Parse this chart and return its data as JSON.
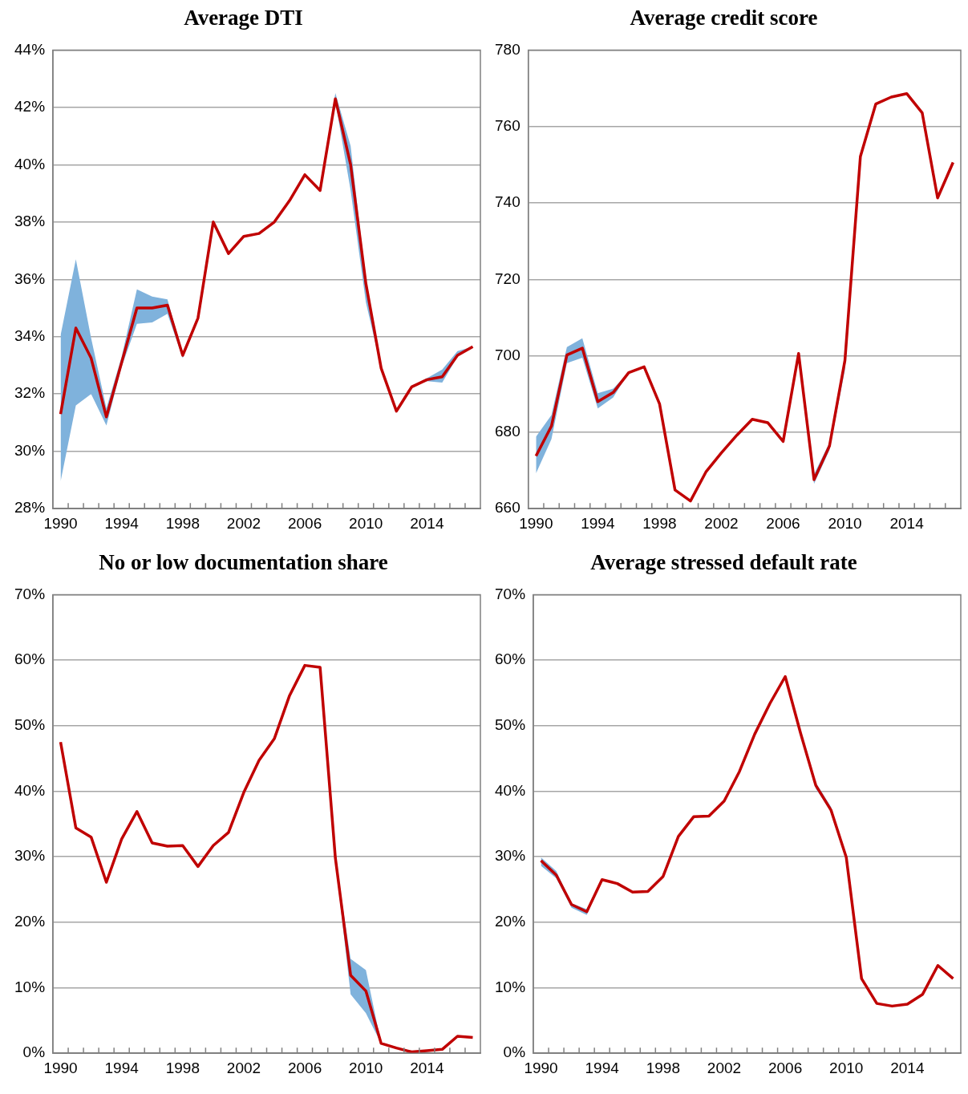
{
  "chart_data": [
    {
      "type": "line",
      "title": "Average DTI",
      "categories": [
        "1990",
        null,
        null,
        null,
        "1994",
        null,
        null,
        null,
        "1998",
        null,
        null,
        null,
        "2002",
        null,
        null,
        null,
        "2006",
        null,
        null,
        null,
        "2010",
        null,
        null,
        null,
        "2014",
        null,
        null,
        null
      ],
      "series": [
        {
          "color": "#c00000",
          "values": [
            31.3,
            34.3,
            33.25,
            31.2,
            33.1,
            35.0,
            35.0,
            35.1,
            33.35,
            34.65,
            38.0,
            36.9,
            37.5,
            37.6,
            38.0,
            38.75,
            39.65,
            39.1,
            42.3,
            40.0,
            35.85,
            32.9,
            31.4,
            32.25,
            32.5,
            32.6,
            33.35,
            33.65
          ],
          "lower": [
            28.95,
            31.6,
            32.0,
            30.9,
            32.95,
            34.45,
            34.5,
            34.8,
            33.25,
            34.65,
            38.0,
            36.9,
            37.5,
            37.6,
            38.0,
            38.75,
            39.65,
            39.1,
            42.2,
            39.1,
            35.2,
            32.9,
            31.4,
            32.25,
            32.45,
            32.4,
            33.3,
            33.65
          ],
          "upper": [
            34.05,
            36.7,
            33.95,
            31.5,
            33.3,
            35.65,
            35.4,
            35.3,
            33.4,
            34.65,
            38.0,
            36.9,
            37.5,
            37.6,
            38.0,
            38.75,
            39.65,
            39.1,
            42.5,
            40.65,
            35.95,
            33.0,
            31.4,
            32.25,
            32.55,
            32.85,
            33.5,
            33.65
          ]
        }
      ],
      "ylim": [
        28,
        44
      ],
      "yticks": [
        {
          "value": 28,
          "label": "28%"
        },
        {
          "value": 30,
          "label": "30%"
        },
        {
          "value": 32,
          "label": "32%"
        },
        {
          "value": 34,
          "label": "34%"
        },
        {
          "value": 36,
          "label": "36%"
        },
        {
          "value": 38,
          "label": "38%"
        },
        {
          "value": 40,
          "label": "40%"
        },
        {
          "value": 42,
          "label": "42%"
        },
        {
          "value": 44,
          "label": "44%"
        }
      ],
      "grid": "y",
      "legend": false
    },
    {
      "type": "line",
      "title": "Average credit score",
      "categories": [
        "1990",
        null,
        null,
        null,
        "1994",
        null,
        null,
        null,
        "1998",
        null,
        null,
        null,
        "2002",
        null,
        null,
        null,
        "2006",
        null,
        null,
        null,
        "2010",
        null,
        null,
        null,
        "2014",
        null,
        null,
        null
      ],
      "series": [
        {
          "color": "#c00000",
          "values": [
            673.8,
            681.6,
            700.2,
            702.0,
            688.0,
            690.4,
            695.6,
            697.1,
            687.4,
            664.9,
            662.0,
            669.6,
            674.6,
            679.2,
            683.4,
            682.5,
            677.6,
            700.6,
            667.6,
            676.4,
            698.8,
            752.1,
            765.9,
            767.7,
            768.6,
            763.6,
            741.3,
            750.6
          ],
          "lower": [
            669.2,
            678.2,
            698.1,
            699.5,
            686.2,
            689.1,
            695.6,
            697.1,
            687.4,
            664.9,
            662.0,
            669.6,
            674.6,
            679.2,
            683.4,
            682.5,
            677.6,
            700.6,
            666.5,
            675.3,
            696.3,
            752.1,
            765.9,
            767.7,
            768.6,
            763.6,
            741.3,
            750.6
          ],
          "upper": [
            678.8,
            684.5,
            702.3,
            704.6,
            690.2,
            691.4,
            695.6,
            697.1,
            687.4,
            664.9,
            662.0,
            669.6,
            674.6,
            679.2,
            683.4,
            682.5,
            677.6,
            700.6,
            669.0,
            677.3,
            700.1,
            752.1,
            765.9,
            767.7,
            768.6,
            763.6,
            741.3,
            750.6
          ]
        }
      ],
      "ylim": [
        660,
        780
      ],
      "yticks": [
        660,
        680,
        700,
        720,
        740,
        760,
        780
      ],
      "grid": "y",
      "legend": false
    },
    {
      "type": "line",
      "title": "No or low documentation share",
      "categories": [
        "1990",
        null,
        null,
        null,
        "1994",
        null,
        null,
        null,
        "1998",
        null,
        null,
        null,
        "2002",
        null,
        null,
        null,
        "2006",
        null,
        null,
        null,
        "2010",
        null,
        null,
        null,
        "2014",
        null,
        null,
        null
      ],
      "series": [
        {
          "color": "#c00000",
          "values": [
            47.5,
            34.4,
            33.0,
            26.1,
            32.7,
            36.9,
            32.1,
            31.6,
            31.7,
            28.5,
            31.7,
            33.7,
            39.8,
            44.7,
            48.0,
            54.6,
            59.2,
            58.9,
            29.8,
            11.9,
            9.5,
            1.5,
            0.8,
            0.2,
            0.4,
            0.6,
            2.6,
            2.4
          ],
          "lower": [
            47.5,
            34.4,
            33.0,
            26.1,
            32.7,
            36.9,
            32.1,
            31.6,
            31.7,
            28.5,
            31.7,
            33.7,
            39.8,
            44.7,
            48.0,
            54.6,
            59.2,
            58.9,
            29.3,
            9.0,
            6.1,
            1.5,
            0.8,
            0.2,
            0.4,
            0.6,
            2.6,
            2.4
          ],
          "upper": [
            47.5,
            34.4,
            33.0,
            26.1,
            32.7,
            36.9,
            32.1,
            31.6,
            31.7,
            28.5,
            31.7,
            33.7,
            39.8,
            44.7,
            48.0,
            54.6,
            59.2,
            58.9,
            29.8,
            14.4,
            12.7,
            1.5,
            0.8,
            0.2,
            0.4,
            0.6,
            2.6,
            2.4
          ]
        }
      ],
      "ylim": [
        0,
        70
      ],
      "yticks": [
        {
          "value": 0,
          "label": "0%"
        },
        {
          "value": 10,
          "label": "10%"
        },
        {
          "value": 20,
          "label": "20%"
        },
        {
          "value": 30,
          "label": "30%"
        },
        {
          "value": 40,
          "label": "40%"
        },
        {
          "value": 50,
          "label": "50%"
        },
        {
          "value": 60,
          "label": "60%"
        },
        {
          "value": 70,
          "label": "70%"
        }
      ],
      "grid": "y",
      "legend": false
    },
    {
      "type": "line",
      "title": "Average stressed default rate",
      "categories": [
        "1990",
        null,
        null,
        null,
        "1994",
        null,
        null,
        null,
        "1998",
        null,
        null,
        null,
        "2002",
        null,
        null,
        null,
        "2006",
        null,
        null,
        null,
        "2010",
        null,
        null,
        null,
        "2014",
        null,
        null,
        null
      ],
      "series": [
        {
          "color": "#c00000",
          "values": [
            29.4,
            27.2,
            22.7,
            21.6,
            26.5,
            25.9,
            24.6,
            24.7,
            27.0,
            33.1,
            36.1,
            36.2,
            38.5,
            43.0,
            48.7,
            53.4,
            57.5,
            48.9,
            40.9,
            37.1,
            29.9,
            11.4,
            7.6,
            7.2,
            7.5,
            9.0,
            13.4,
            11.4
          ],
          "lower": [
            28.6,
            26.7,
            22.2,
            21.1,
            26.5,
            25.9,
            24.6,
            24.7,
            27.0,
            33.1,
            36.1,
            36.2,
            38.5,
            43.0,
            48.7,
            53.4,
            57.5,
            48.9,
            40.4,
            36.9,
            29.9,
            11.4,
            7.6,
            7.2,
            7.5,
            9.0,
            13.4,
            11.4
          ],
          "upper": [
            29.9,
            27.8,
            22.9,
            22.0,
            26.5,
            25.9,
            24.6,
            24.7,
            27.0,
            33.1,
            36.1,
            36.2,
            38.5,
            43.0,
            48.7,
            53.4,
            57.5,
            48.9,
            41.3,
            37.6,
            29.9,
            11.4,
            7.6,
            7.2,
            7.5,
            9.0,
            13.4,
            11.4
          ]
        }
      ],
      "ylim": [
        0,
        70
      ],
      "yticks": [
        {
          "value": 0,
          "label": "0%"
        },
        {
          "value": 10,
          "label": "10%"
        },
        {
          "value": 20,
          "label": "20%"
        },
        {
          "value": 30,
          "label": "30%"
        },
        {
          "value": 40,
          "label": "40%"
        },
        {
          "value": 50,
          "label": "50%"
        },
        {
          "value": 60,
          "label": "60%"
        },
        {
          "value": 70,
          "label": "70%"
        }
      ],
      "grid": "y",
      "legend": false
    }
  ]
}
